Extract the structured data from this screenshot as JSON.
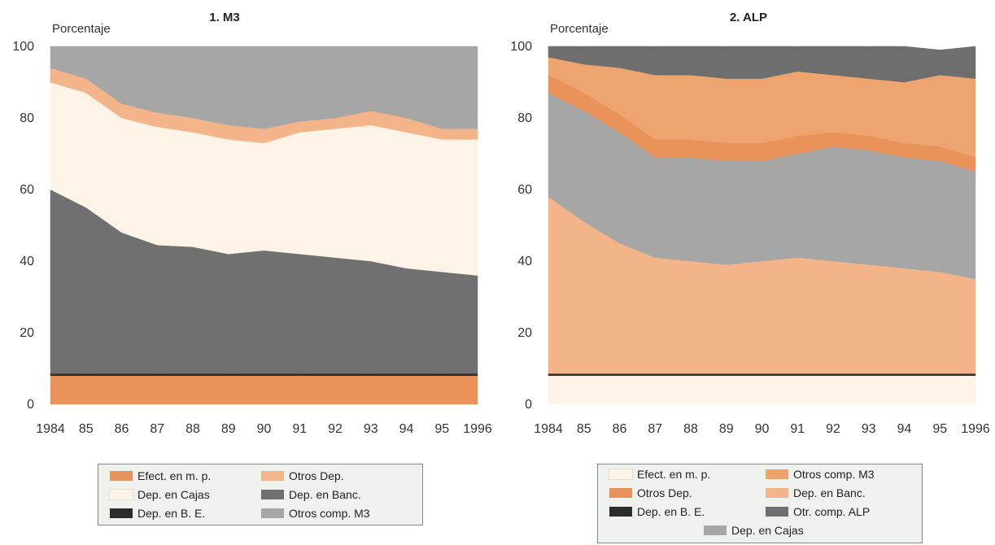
{
  "chart_data": [
    {
      "type": "area",
      "stacked": true,
      "title": "1. M3",
      "ylabel": "Porcentaje",
      "xlabel": "",
      "ylim": [
        0,
        100
      ],
      "yticks": [
        0,
        20,
        40,
        60,
        80,
        100
      ],
      "x": [
        "1984",
        "85",
        "86",
        "87",
        "88",
        "89",
        "90",
        "91",
        "92",
        "93",
        "94",
        "95",
        "1996"
      ],
      "grid": false,
      "legend_position": "bottom",
      "series": [
        {
          "name": "Efect. en m. p.",
          "color": "#e9925a",
          "values": [
            8,
            8,
            8,
            8,
            8,
            8,
            8,
            8,
            8,
            8,
            8,
            8,
            8
          ]
        },
        {
          "name": "Dep. en B. E.",
          "color": "#2c2c2c",
          "values": [
            0.6,
            0.6,
            0.6,
            0.6,
            0.6,
            0.6,
            0.6,
            0.6,
            0.6,
            0.6,
            0.6,
            0.6,
            0.6
          ]
        },
        {
          "name": "Dep. en Banc.",
          "color": "#707070",
          "values": [
            51.4,
            46.4,
            39.4,
            35.9,
            35.4,
            33.4,
            34.4,
            33.4,
            32.4,
            31.4,
            29.4,
            28.4,
            27.4
          ]
        },
        {
          "name": "Dep. en Cajas",
          "color": "#fdf3e6",
          "values": [
            30,
            32,
            32,
            33,
            32,
            32,
            30,
            34,
            36,
            38,
            38,
            37,
            38
          ]
        },
        {
          "name": "Otros Dep.",
          "color": "#f4b48a",
          "values": [
            4,
            4,
            4,
            4,
            4,
            4,
            4,
            3,
            3,
            4,
            4,
            3,
            3
          ]
        },
        {
          "name": "Otros comp. M3",
          "color": "#a6a6a6",
          "values": [
            6,
            9,
            16,
            18.5,
            20,
            22,
            23,
            21,
            20,
            18,
            20,
            23,
            23
          ]
        }
      ]
    },
    {
      "type": "area",
      "stacked": true,
      "title": "2. ALP",
      "ylabel": "Porcentaje",
      "xlabel": "",
      "ylim": [
        0,
        100
      ],
      "yticks": [
        0,
        20,
        40,
        60,
        80,
        100
      ],
      "x": [
        "1984",
        "85",
        "86",
        "87",
        "88",
        "89",
        "90",
        "91",
        "92",
        "93",
        "94",
        "95",
        "1996"
      ],
      "grid": false,
      "legend_position": "bottom",
      "series": [
        {
          "name": "Efect. en m. p.",
          "color": "#fdf3e6",
          "values": [
            8,
            8,
            8,
            8,
            8,
            8,
            8,
            8,
            8,
            8,
            8,
            8,
            8
          ]
        },
        {
          "name": "Dep. en B. E.",
          "color": "#2c2c2c",
          "values": [
            0.6,
            0.6,
            0.6,
            0.6,
            0.6,
            0.6,
            0.6,
            0.6,
            0.6,
            0.6,
            0.6,
            0.6,
            0.6
          ]
        },
        {
          "name": "Dep. en Banc.",
          "color": "#f4b48a",
          "values": [
            49.4,
            42.4,
            36.4,
            32.4,
            31.4,
            30.4,
            31.4,
            32.4,
            31.4,
            30.4,
            29.4,
            28.4,
            26.4
          ]
        },
        {
          "name": "Dep. en Cajas",
          "color": "#a6a6a6",
          "values": [
            29,
            31,
            31,
            28,
            29,
            29,
            28,
            29,
            32,
            32,
            31,
            31,
            30
          ]
        },
        {
          "name": "Otros Dep.",
          "color": "#e9925a",
          "values": [
            5,
            5,
            5,
            5,
            5,
            5,
            5,
            5,
            4,
            4,
            4,
            4,
            4
          ]
        },
        {
          "name": "Otros comp. M3",
          "color": "#eea46e",
          "values": [
            5,
            8,
            13,
            18,
            18,
            18,
            18,
            18,
            16,
            16,
            17,
            20,
            22
          ]
        },
        {
          "name": "Otr. comp.  ALP",
          "color": "#6e6e6e",
          "values": [
            3,
            5,
            6,
            8,
            8,
            9,
            9,
            7,
            8,
            9,
            10,
            7,
            9
          ]
        }
      ]
    }
  ],
  "legends": [
    {
      "items": [
        {
          "label": "Efect. en m. p.",
          "color": "#e9925a"
        },
        {
          "label": "Otros Dep.",
          "color": "#f4b48a"
        },
        {
          "label": "Dep. en Cajas",
          "color": "#fdf3e6"
        },
        {
          "label": "Dep. en Banc.",
          "color": "#707070"
        },
        {
          "label": "Dep. en B. E.",
          "color": "#2c2c2c"
        },
        {
          "label": "Otros comp. M3",
          "color": "#a6a6a6"
        }
      ]
    },
    {
      "items": [
        {
          "label": "Efect. en m. p.",
          "color": "#fdf3e6"
        },
        {
          "label": "Otros comp. M3",
          "color": "#eea46e"
        },
        {
          "label": "Otros Dep.",
          "color": "#e9925a"
        },
        {
          "label": "Dep. en Banc.",
          "color": "#f4b48a"
        },
        {
          "label": "Dep. en B. E.",
          "color": "#2c2c2c"
        },
        {
          "label": "Otr. comp.  ALP",
          "color": "#6e6e6e"
        },
        {
          "label": "Dep. en Cajas",
          "color": "#a6a6a6"
        }
      ]
    }
  ]
}
